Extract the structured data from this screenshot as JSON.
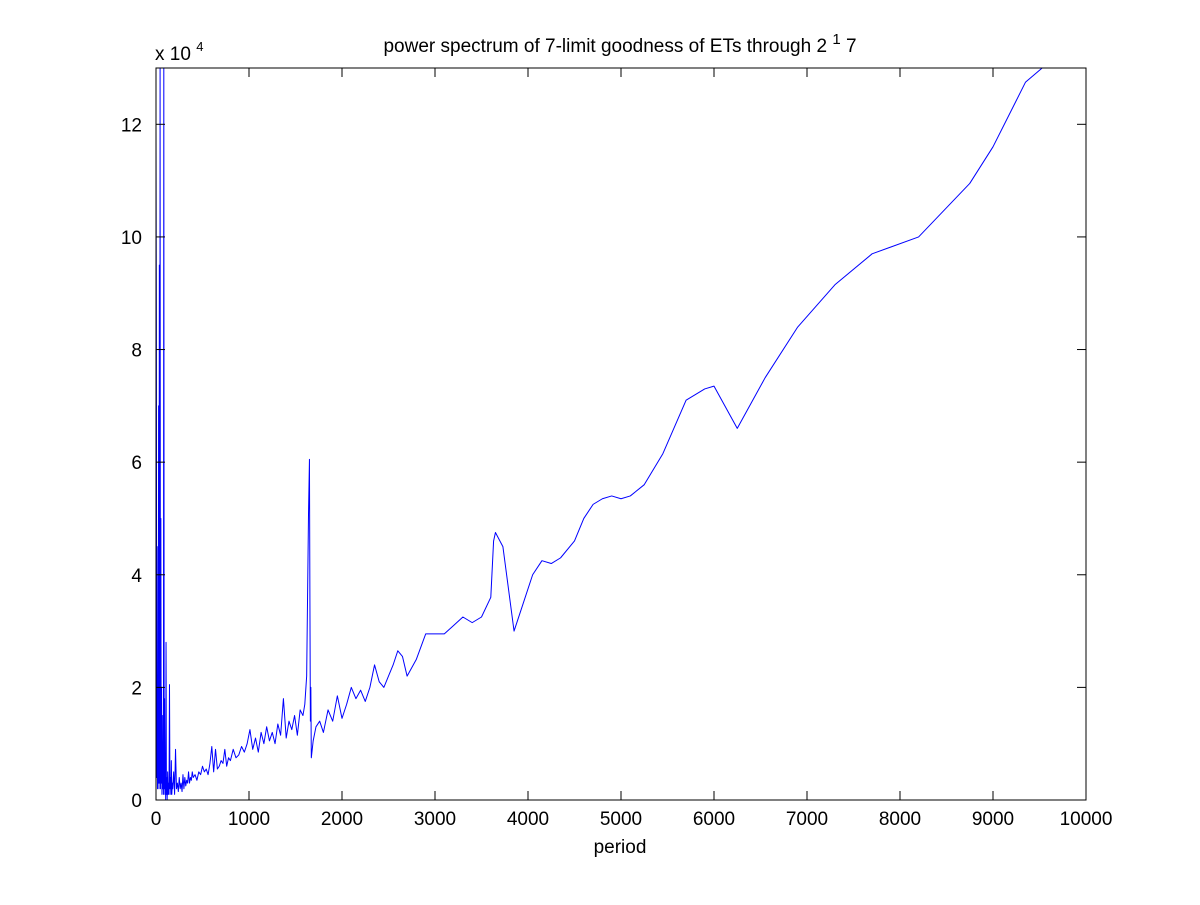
{
  "chart_data": {
    "type": "line",
    "title_main": "power spectrum of 7-limit goodness of ETs through 2",
    "title_sup": "1",
    "title_tail": "7",
    "xlabel": "period",
    "ylabel": "",
    "y_multiplier_base": "x 10",
    "y_multiplier_exp": "4",
    "xlim": [
      0,
      10000
    ],
    "ylim": [
      0,
      13
    ],
    "x_ticks": [
      0,
      1000,
      2000,
      3000,
      4000,
      5000,
      6000,
      7000,
      8000,
      9000,
      10000
    ],
    "x_tick_labels": [
      "0",
      "1000",
      "2000",
      "3000",
      "4000",
      "5000",
      "6000",
      "7000",
      "8000",
      "9000",
      "10000"
    ],
    "y_ticks": [
      0,
      2,
      4,
      6,
      8,
      10,
      12
    ],
    "y_tick_labels": [
      "0",
      "2",
      "4",
      "6",
      "8",
      "10",
      "12"
    ],
    "grid": false,
    "series": [
      {
        "color": "#0000ff",
        "x": [
          0,
          4,
          8,
          12,
          16,
          20,
          24,
          28,
          32,
          36,
          40,
          44,
          48,
          52,
          56,
          60,
          64,
          68,
          72,
          76,
          80,
          84,
          88,
          92,
          96,
          100,
          104,
          108,
          112,
          116,
          120,
          125,
          130,
          135,
          140,
          145,
          150,
          155,
          160,
          165,
          170,
          175,
          180,
          190,
          200,
          210,
          220,
          230,
          240,
          250,
          260,
          270,
          280,
          290,
          300,
          310,
          320,
          330,
          340,
          350,
          360,
          370,
          380,
          390,
          400,
          420,
          440,
          460,
          480,
          500,
          520,
          540,
          560,
          580,
          600,
          620,
          640,
          660,
          680,
          700,
          720,
          740,
          760,
          780,
          800,
          830,
          860,
          890,
          920,
          950,
          980,
          1010,
          1040,
          1070,
          1100,
          1130,
          1160,
          1190,
          1220,
          1250,
          1280,
          1310,
          1340,
          1370,
          1400,
          1430,
          1460,
          1490,
          1520,
          1550,
          1580,
          1600,
          1620,
          1640,
          1650,
          1655,
          1660,
          1665,
          1670,
          1690,
          1720,
          1760,
          1800,
          1850,
          1900,
          1950,
          2000,
          2050,
          2100,
          2150,
          2200,
          2250,
          2300,
          2350,
          2400,
          2450,
          2500,
          2550,
          2600,
          2650,
          2700,
          2800,
          2900,
          3000,
          3100,
          3200,
          3300,
          3400,
          3500,
          3600,
          3630,
          3650,
          3730,
          3850,
          3950,
          4050,
          4150,
          4250,
          4350,
          4500,
          4600,
          4700,
          4800,
          4900,
          5000,
          5100,
          5250,
          5450,
          5700,
          5900,
          6000,
          6250,
          6550,
          6900,
          7300,
          7700,
          8200,
          8750,
          9000,
          9350,
          9600
        ],
        "values": [
          12.0,
          8.5,
          0.4,
          2.0,
          0.2,
          4.5,
          0.3,
          7.0,
          0.2,
          9.5,
          0.3,
          13.0,
          0.2,
          5.0,
          0.3,
          2.0,
          0.1,
          1.5,
          0.2,
          0.8,
          0.1,
          13.0,
          0.2,
          1.8,
          0.1,
          0.6,
          0.0,
          2.8,
          0.1,
          0.4,
          0.0,
          0.5,
          0.1,
          0.3,
          0.1,
          2.05,
          0.2,
          0.4,
          0.1,
          0.7,
          0.1,
          0.3,
          0.2,
          0.5,
          0.1,
          0.9,
          0.2,
          0.3,
          0.15,
          0.4,
          0.2,
          0.3,
          0.15,
          0.45,
          0.2,
          0.4,
          0.25,
          0.35,
          0.3,
          0.5,
          0.3,
          0.4,
          0.35,
          0.5,
          0.4,
          0.45,
          0.35,
          0.5,
          0.45,
          0.6,
          0.5,
          0.55,
          0.45,
          0.65,
          0.95,
          0.5,
          0.9,
          0.55,
          0.6,
          0.7,
          0.65,
          0.9,
          0.6,
          0.75,
          0.7,
          0.9,
          0.75,
          0.8,
          0.95,
          0.85,
          1.0,
          1.25,
          0.9,
          1.1,
          0.85,
          1.2,
          1.0,
          1.3,
          1.05,
          1.2,
          1.0,
          1.35,
          1.15,
          1.8,
          1.1,
          1.4,
          1.25,
          1.5,
          1.15,
          1.6,
          1.5,
          1.7,
          2.2,
          5.1,
          6.05,
          3.5,
          1.4,
          2.0,
          0.75,
          1.05,
          1.3,
          1.4,
          1.2,
          1.6,
          1.4,
          1.85,
          1.45,
          1.7,
          2.0,
          1.8,
          1.95,
          1.75,
          2.0,
          2.4,
          2.1,
          2.0,
          2.2,
          2.4,
          2.65,
          2.55,
          2.2,
          2.5,
          2.95,
          2.95,
          2.95,
          3.1,
          3.25,
          3.15,
          3.25,
          3.6,
          4.6,
          4.75,
          4.5,
          3.0,
          3.5,
          4.0,
          4.25,
          4.2,
          4.3,
          4.6,
          5.0,
          5.25,
          5.35,
          5.4,
          5.35,
          5.4,
          5.6,
          6.15,
          7.1,
          7.3,
          7.35,
          6.6,
          7.5,
          8.4,
          9.15,
          9.7,
          10.0,
          10.95,
          11.6,
          12.75,
          13.1
        ]
      }
    ]
  }
}
